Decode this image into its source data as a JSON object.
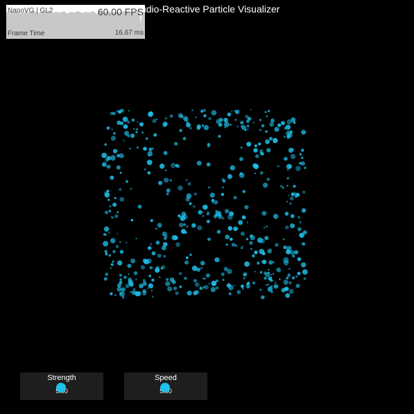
{
  "app": {
    "title": "Audio-Reactive Particle Visualizer"
  },
  "perf_graph": {
    "renderer_label": "NanoVG | GL2",
    "fps_text": "60.00 FPS",
    "metric_label": "Frame Time",
    "metric_value": "16.67 ms",
    "background_color": "#c8c8c8",
    "graph_color": "#ffffff"
  },
  "visualizer": {
    "particle_color": "#1ec0ea"
  },
  "controls": {
    "strength": {
      "label": "Strength",
      "value": "5.00"
    },
    "speed": {
      "label": "Speed",
      "value": "5.00"
    },
    "knob_color": "#1ec0ea"
  }
}
